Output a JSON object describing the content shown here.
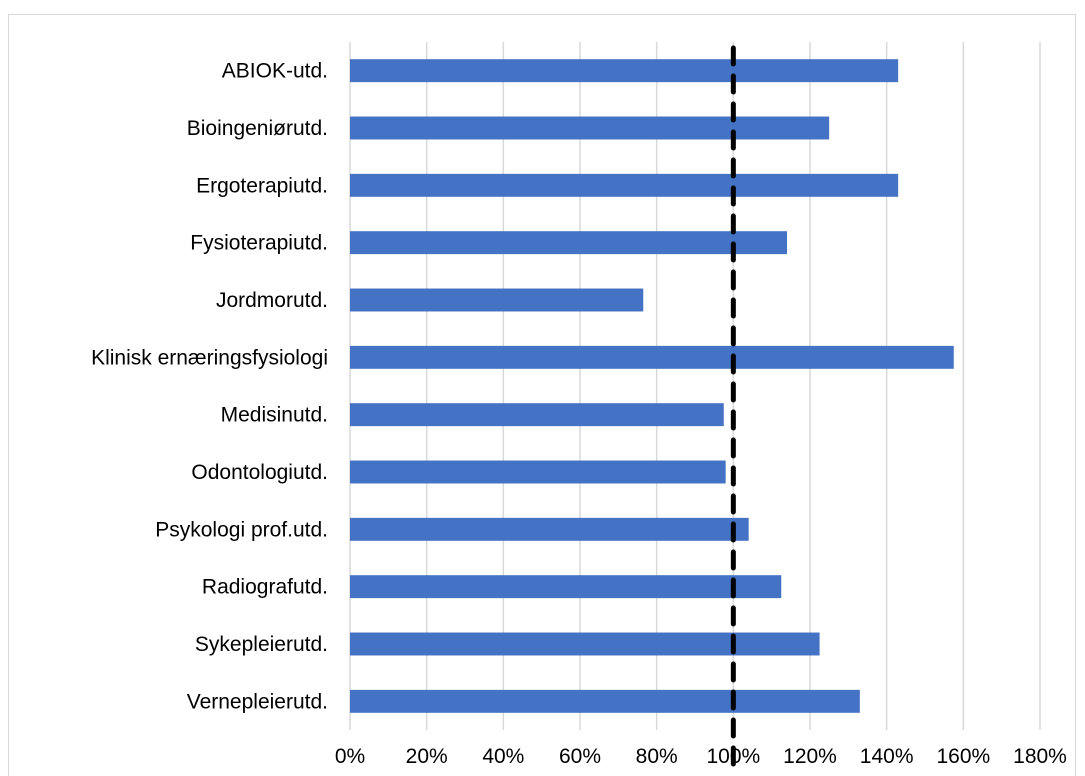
{
  "chart_data": {
    "type": "bar",
    "orientation": "horizontal",
    "title": "",
    "xlabel": "",
    "ylabel": "",
    "categories": [
      "ABIOK-utd.",
      "Bioingeniørutd.",
      "Ergoterapiutd.",
      "Fysioterapiutd.",
      "Jordmorutd.",
      "Klinisk ernæringsfysiologi",
      "Medisinutd.",
      "Odontologiutd.",
      "Psykologi prof.utd.",
      "Radiografutd.",
      "Sykepleierutd.",
      "Vernepleierutd."
    ],
    "values": [
      143,
      125,
      143,
      114,
      76.5,
      157.5,
      97.5,
      98,
      104,
      112.5,
      122.5,
      133
    ],
    "value_unit": "%",
    "xlim": [
      0,
      180
    ],
    "x_ticks": [
      "0%",
      "20%",
      "40%",
      "60%",
      "80%",
      "100%",
      "120%",
      "140%",
      "160%",
      "180%"
    ],
    "reference_line": {
      "value": 100,
      "style": "dashed",
      "color": "#000000"
    },
    "grid": "vertical",
    "legend": "none",
    "colors": {
      "bar": "#4472C4",
      "grid": "#d9d9d9",
      "reference": "#000000"
    }
  }
}
